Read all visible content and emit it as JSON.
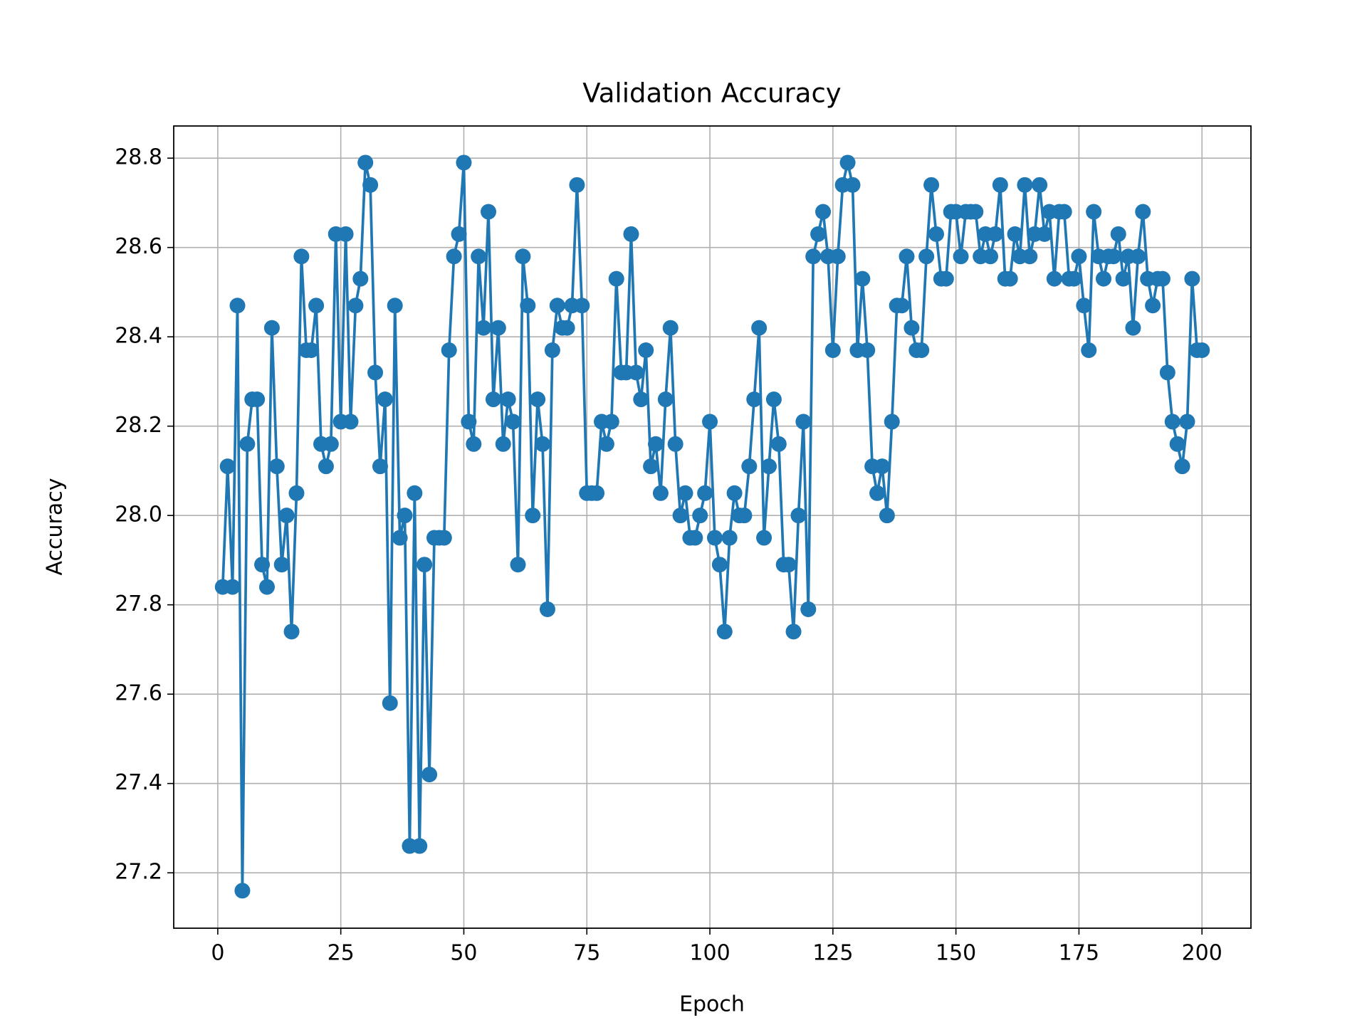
{
  "chart_data": {
    "type": "line",
    "title": "Validation Accuracy",
    "x_label": "Epoch",
    "y_label": "Accuracy",
    "x": [
      1,
      2,
      3,
      4,
      5,
      6,
      7,
      8,
      9,
      10,
      11,
      12,
      13,
      14,
      15,
      16,
      17,
      18,
      19,
      20,
      21,
      22,
      23,
      24,
      25,
      26,
      27,
      28,
      29,
      30,
      31,
      32,
      33,
      34,
      35,
      36,
      37,
      38,
      39,
      40,
      41,
      42,
      43,
      44,
      45,
      46,
      47,
      48,
      49,
      50,
      51,
      52,
      53,
      54,
      55,
      56,
      57,
      58,
      59,
      60,
      61,
      62,
      63,
      64,
      65,
      66,
      67,
      68,
      69,
      70,
      71,
      72,
      73,
      74,
      75,
      76,
      77,
      78,
      79,
      80,
      81,
      82,
      83,
      84,
      85,
      86,
      87,
      88,
      89,
      90,
      91,
      92,
      93,
      94,
      95,
      96,
      97,
      98,
      99,
      100,
      101,
      102,
      103,
      104,
      105,
      106,
      107,
      108,
      109,
      110,
      111,
      112,
      113,
      114,
      115,
      116,
      117,
      118,
      119,
      120,
      121,
      122,
      123,
      124,
      125,
      126,
      127,
      128,
      129,
      130,
      131,
      132,
      133,
      134,
      135,
      136,
      137,
      138,
      139,
      140,
      141,
      142,
      143,
      144,
      145,
      146,
      147,
      148,
      149,
      150,
      151,
      152,
      153,
      154,
      155,
      156,
      157,
      158,
      159,
      160,
      161,
      162,
      163,
      164,
      165,
      166,
      167,
      168,
      169,
      170,
      171,
      172,
      173,
      174,
      175,
      176,
      177,
      178,
      179,
      180,
      181,
      182,
      183,
      184,
      185,
      186,
      187,
      188,
      189,
      190,
      191,
      192,
      193,
      194,
      195,
      196,
      197,
      198,
      199,
      200
    ],
    "series": [
      {
        "name": "Validation Accuracy",
        "color": "#1f77b4",
        "values": [
          27.84,
          28.11,
          27.84,
          28.47,
          27.16,
          28.16,
          28.26,
          28.26,
          27.89,
          27.84,
          28.42,
          28.11,
          27.89,
          28.0,
          27.74,
          28.05,
          28.58,
          28.37,
          28.37,
          28.47,
          28.16,
          28.11,
          28.16,
          28.63,
          28.21,
          28.63,
          28.21,
          28.47,
          28.53,
          28.79,
          28.74,
          28.32,
          28.11,
          28.26,
          27.58,
          28.47,
          27.95,
          28.0,
          27.26,
          28.05,
          27.26,
          27.89,
          27.42,
          27.95,
          27.95,
          27.95,
          28.37,
          28.58,
          28.63,
          28.79,
          28.21,
          28.16,
          28.58,
          28.42,
          28.68,
          28.26,
          28.42,
          28.16,
          28.26,
          28.21,
          27.89,
          28.58,
          28.47,
          28.0,
          28.26,
          28.16,
          27.79,
          28.37,
          28.47,
          28.42,
          28.42,
          28.47,
          28.74,
          28.47,
          28.05,
          28.05,
          28.05,
          28.21,
          28.16,
          28.21,
          28.53,
          28.32,
          28.32,
          28.63,
          28.32,
          28.26,
          28.37,
          28.11,
          28.16,
          28.05,
          28.26,
          28.42,
          28.16,
          28.0,
          28.05,
          27.95,
          27.95,
          28.0,
          28.05,
          28.21,
          27.95,
          27.89,
          27.74,
          27.95,
          28.05,
          28.0,
          28.0,
          28.11,
          28.26,
          28.42,
          27.95,
          28.11,
          28.26,
          28.16,
          27.89,
          27.89,
          27.74,
          28.0,
          28.21,
          27.79,
          28.58,
          28.63,
          28.68,
          28.58,
          28.37,
          28.58,
          28.74,
          28.79,
          28.74,
          28.37,
          28.53,
          28.37,
          28.11,
          28.05,
          28.11,
          28.0,
          28.21,
          28.47,
          28.47,
          28.58,
          28.42,
          28.37,
          28.37,
          28.58,
          28.74,
          28.63,
          28.53,
          28.53,
          28.68,
          28.68,
          28.58,
          28.68,
          28.68,
          28.68,
          28.58,
          28.63,
          28.58,
          28.63,
          28.74,
          28.53,
          28.53,
          28.63,
          28.58,
          28.74,
          28.58,
          28.63,
          28.74,
          28.63,
          28.68,
          28.53,
          28.68,
          28.68,
          28.53,
          28.53,
          28.58,
          28.47,
          28.37,
          28.68,
          28.58,
          28.53,
          28.58,
          28.58,
          28.63,
          28.53,
          28.58,
          28.42,
          28.58,
          28.68,
          28.53,
          28.47,
          28.53,
          28.53,
          28.32,
          28.21,
          28.16,
          28.11,
          28.21,
          28.53,
          28.37,
          28.37
        ]
      }
    ],
    "xlim": [
      -8.95,
      209.95
    ],
    "ylim": [
      27.076,
      28.872
    ],
    "xticks": [
      0,
      25,
      50,
      75,
      100,
      125,
      150,
      175,
      200
    ],
    "yticks": [
      27.2,
      27.4,
      27.6,
      27.8,
      {
        "value": 28,
        "label": "28.0"
      },
      28.2,
      28.4,
      28.6,
      28.8
    ],
    "grid": true
  }
}
